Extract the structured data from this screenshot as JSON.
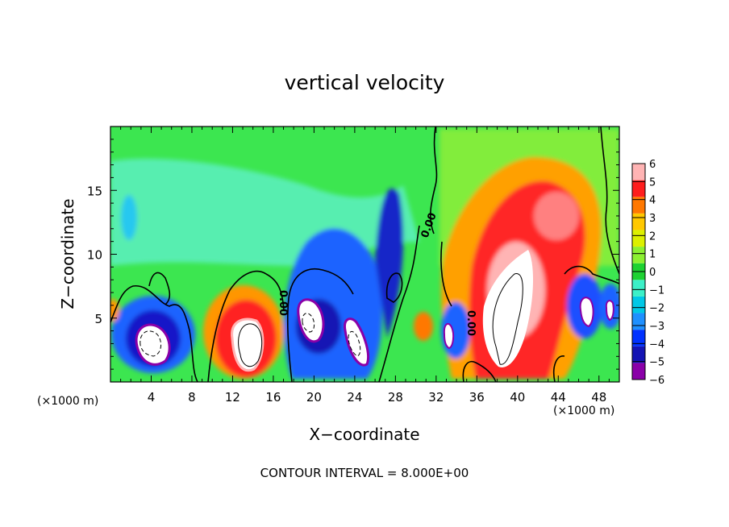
{
  "chart_data": {
    "type": "heatmap",
    "title": "vertical velocity",
    "xlabel": "X−coordinate",
    "ylabel": "Z−coordinate",
    "x_unit_left": "(×1000 m)",
    "x_unit_right": "(×1000 m)",
    "footer": "CONTOUR INTERVAL = 8.000E+00",
    "xlim": [
      0,
      50
    ],
    "ylim": [
      0,
      20
    ],
    "x_ticks": [
      4,
      8,
      12,
      16,
      20,
      24,
      28,
      32,
      36,
      40,
      44,
      48
    ],
    "y_ticks": [
      5,
      10,
      15
    ],
    "colorbar": {
      "levels": [
        -6,
        -5,
        -4,
        -3,
        -2,
        -1,
        0,
        1,
        2,
        3,
        4,
        5,
        6
      ],
      "labels": [
        "6",
        "5",
        "4",
        "3",
        "2",
        "1",
        "0",
        "−1",
        "−2",
        "−3",
        "−4",
        "−5",
        "−6"
      ],
      "colors": [
        "#8a00a8",
        "#1414b4",
        "#0032ff",
        "#1e90ff",
        "#00c8e6",
        "#3cf0c8",
        "#1ed232",
        "#8cf032",
        "#dcf000",
        "#ffc800",
        "#ff7800",
        "#ff1e1e",
        "#ffb4b4"
      ]
    },
    "contour_labels": [
      "0.00",
      "0.00",
      "0.00"
    ],
    "features": [
      {
        "x": 4.5,
        "z": 3.0,
        "sign": "negative",
        "peak": "below -6"
      },
      {
        "x": 13.5,
        "z": 3.5,
        "sign": "positive",
        "peak": "above 6"
      },
      {
        "x": 19.5,
        "z": 4.5,
        "sign": "negative",
        "peak": "below -6"
      },
      {
        "x": 23.5,
        "z": 3.0,
        "sign": "negative",
        "peak": "below -6"
      },
      {
        "x": 25.5,
        "z": 11.0,
        "sign": "negative",
        "peak": -4.5
      },
      {
        "x": 39.0,
        "z": 5.0,
        "sign": "positive",
        "peak": "above 6"
      },
      {
        "x": 43.0,
        "z": 13.5,
        "sign": "positive",
        "peak": 5.5
      },
      {
        "x": 47.0,
        "z": 6.0,
        "sign": "negative",
        "peak": "below -6"
      }
    ]
  }
}
